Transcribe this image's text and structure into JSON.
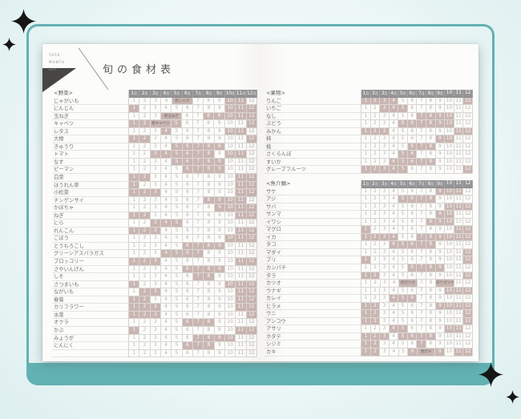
{
  "backdrop": {
    "frame_color": "#62b1b3",
    "sparkle_color": "#161616"
  },
  "page": {
    "title": "旬の食材表",
    "corner_lines": [
      "YEAR",
      "MONTH",
      "DAY"
    ]
  },
  "month_suffix": "月",
  "month_numbers": [
    "1",
    "2",
    "3",
    "4",
    "5",
    "6",
    "7",
    "8",
    "9",
    "10",
    "11",
    "12"
  ],
  "colors": {
    "header_bg": "#949496",
    "shaded_cell": "#c9b5b1",
    "plain_number": "#b8b3b0",
    "teal": "#62b1b3"
  },
  "tables": [
    {
      "id": "vegetables",
      "section_label": "<野菜>",
      "rows": [
        {
          "name": "じゃがいも",
          "shaded": [
            10,
            11
          ],
          "merges": [
            {
              "from": 5,
              "to": 6,
              "label": "新じゃが"
            }
          ]
        },
        {
          "name": "にんじん",
          "shaded": [
            1,
            10,
            11,
            12
          ]
        },
        {
          "name": "玉ねぎ",
          "shaded": [
            8,
            9,
            10,
            11,
            12
          ],
          "merges": [
            {
              "from": 4,
              "to": 5,
              "label": "新玉ねぎ"
            }
          ]
        },
        {
          "name": "キャベツ",
          "shaded": [
            1,
            2,
            5,
            12
          ],
          "merges": [
            {
              "from": 3,
              "to": 4,
              "label": "春キャベツ"
            }
          ]
        },
        {
          "name": "レタス",
          "shaded": [
            4,
            10,
            11
          ]
        },
        {
          "name": "大根",
          "shaded": [
            1,
            2,
            12
          ]
        },
        {
          "name": "きゅうり",
          "shaded": [
            5,
            6,
            7,
            8,
            9
          ]
        },
        {
          "name": "トマト",
          "shaded": [
            3,
            4,
            5,
            6,
            7,
            8,
            10,
            11
          ]
        },
        {
          "name": "なす",
          "shaded": [
            5,
            6,
            7,
            8,
            9
          ]
        },
        {
          "name": "ピーマン",
          "shaded": [
            6,
            7,
            8,
            9
          ]
        },
        {
          "name": "白菜",
          "shaded": [
            1,
            2,
            11,
            12
          ]
        },
        {
          "name": "ほうれん草",
          "shaded": [
            1,
            11,
            12
          ]
        },
        {
          "name": "小松菜",
          "shaded": [
            1,
            2,
            3,
            11,
            12
          ]
        },
        {
          "name": "チンゲンサイ",
          "shaded": [
            8,
            9,
            10,
            11
          ]
        },
        {
          "name": "かぼちゃ",
          "shaded": [
            9,
            10,
            11,
            12
          ]
        },
        {
          "name": "ねぎ",
          "shaded": [
            1,
            2,
            11,
            12
          ]
        },
        {
          "name": "にら",
          "shaded": [
            3,
            4,
            5
          ]
        },
        {
          "name": "れんこん",
          "shaded": [
            1,
            2,
            3,
            11,
            12
          ]
        },
        {
          "name": "ごぼう",
          "shaded": [
            10,
            11,
            12
          ]
        },
        {
          "name": "とうもろこし",
          "shaded": [
            6,
            7,
            8,
            9
          ]
        },
        {
          "name": "グリーンアスパラガス",
          "shaded": [
            4,
            5,
            6,
            7
          ]
        },
        {
          "name": "ブロッコリー",
          "shaded": [
            1,
            2,
            3,
            11,
            12
          ]
        },
        {
          "name": "さやいんげん",
          "shaded": [
            6,
            7,
            8,
            9
          ]
        },
        {
          "name": "しそ",
          "shaded": [
            7,
            8
          ]
        },
        {
          "name": "さつまいも",
          "shaded": [
            1,
            10,
            11,
            12
          ]
        },
        {
          "name": "ながいも",
          "shaded": [
            2,
            3,
            11,
            12
          ]
        },
        {
          "name": "春菊",
          "shaded": [
            1,
            2,
            11,
            12
          ]
        },
        {
          "name": "カリフラワー",
          "shaded": [
            1,
            2,
            3,
            11,
            12
          ]
        },
        {
          "name": "水菜",
          "shaded": [
            1,
            2,
            3,
            12
          ]
        },
        {
          "name": "オクラ",
          "shaded": [
            6,
            7,
            8
          ]
        },
        {
          "name": "かぶ",
          "shaded": [
            1,
            11,
            12
          ]
        },
        {
          "name": "みょうが",
          "shaded": [
            7,
            8,
            9,
            10
          ]
        },
        {
          "name": "にんにく",
          "shaded": [
            6,
            7,
            8
          ]
        },
        {
          "name": "",
          "shaded": []
        }
      ]
    },
    {
      "id": "fruits",
      "section_label": "<果物>",
      "rows": [
        {
          "name": "りんご",
          "shaded": [
            1,
            2,
            3,
            4,
            12
          ]
        },
        {
          "name": "いちご",
          "shaded": [
            3,
            4,
            5
          ]
        },
        {
          "name": "なし",
          "shaded": [
            7,
            8,
            9,
            10
          ]
        },
        {
          "name": "ぶどう",
          "shaded": [
            5,
            6,
            7,
            8,
            9,
            10
          ]
        },
        {
          "name": "みかん",
          "shaded": [
            1,
            2,
            3,
            11,
            12
          ]
        },
        {
          "name": "柿",
          "shaded": [
            9,
            10
          ]
        },
        {
          "name": "桃",
          "shaded": [
            6,
            7,
            8
          ]
        },
        {
          "name": "さくらんぼ",
          "shaded": [
            5,
            6
          ]
        },
        {
          "name": "すいか",
          "shaded": [
            4,
            5,
            6,
            7,
            8
          ]
        },
        {
          "name": "グレープフルーツ",
          "shaded": [
            1,
            2,
            3,
            4,
            5,
            12
          ]
        }
      ]
    },
    {
      "id": "seafood",
      "section_label": "<魚介類>",
      "rows": [
        {
          "name": "サケ",
          "shaded": [
            9,
            10,
            11
          ]
        },
        {
          "name": "アジ",
          "shaded": [
            5,
            6,
            7,
            8
          ]
        },
        {
          "name": "サバ",
          "shaded": [
            10,
            11,
            12
          ]
        },
        {
          "name": "サンマ",
          "shaded": [
            9,
            10
          ]
        },
        {
          "name": "イワシ",
          "shaded": [
            8,
            9,
            10
          ]
        },
        {
          "name": "マグロ",
          "shaded": [
            1,
            11,
            12
          ]
        },
        {
          "name": "イカ",
          "shaded": [
            1,
            2,
            3,
            4,
            7,
            8,
            9,
            10,
            11,
            12
          ]
        },
        {
          "name": "タコ",
          "shaded": [
            4,
            5,
            6,
            7,
            8
          ]
        },
        {
          "name": "マダイ",
          "shaded": [
            12
          ]
        },
        {
          "name": "ブリ",
          "shaded": [
            1,
            12
          ]
        },
        {
          "name": "カンパチ",
          "shaded": [
            6,
            7,
            8,
            9
          ]
        },
        {
          "name": "タラ",
          "shaded": [
            1,
            2,
            12
          ]
        },
        {
          "name": "カツオ",
          "shaded": [],
          "merges": [
            {
              "from": 5,
              "to": 6,
              "label": "初ガツオ"
            },
            {
              "from": 9,
              "to": 10,
              "label": "戻りガツオ"
            }
          ]
        },
        {
          "name": "ウナギ",
          "shaded": [
            10,
            11,
            12
          ]
        },
        {
          "name": "カレイ",
          "shaded": [
            4,
            5,
            6
          ]
        },
        {
          "name": "ヒラメ",
          "shaded": [
            1,
            2,
            9,
            10,
            11,
            12
          ]
        },
        {
          "name": "ウニ",
          "shaded": [
            1,
            2,
            12
          ]
        },
        {
          "name": "アンコウ",
          "shaded": [
            1,
            2,
            12
          ]
        },
        {
          "name": "アサリ",
          "shaded": [
            4,
            5,
            10,
            11
          ]
        },
        {
          "name": "ホタテ",
          "shaded": [
            1,
            2,
            3,
            5,
            6,
            7,
            8
          ]
        },
        {
          "name": "シジミ",
          "shaded": [
            1,
            2,
            7
          ]
        },
        {
          "name": "カキ",
          "shaded": [
            1,
            2,
            6,
            9,
            11,
            12
          ],
          "merges": [
            {
              "from": 7,
              "to": 8,
              "label": "岩ガキ"
            }
          ]
        }
      ]
    }
  ]
}
